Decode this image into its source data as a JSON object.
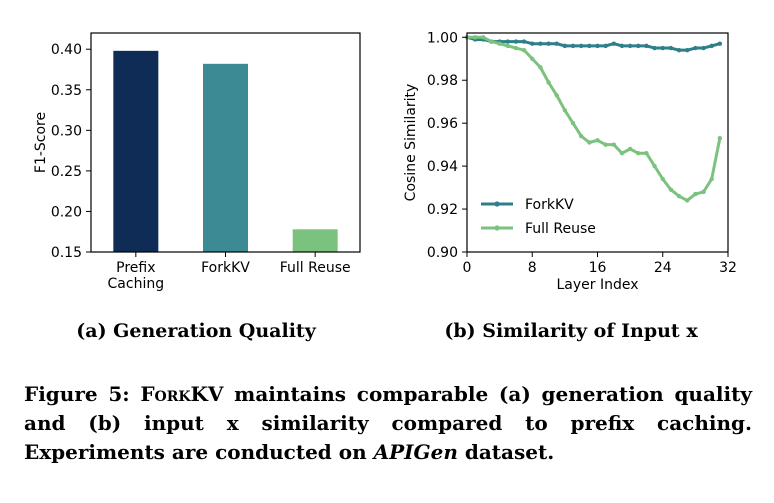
{
  "chart_data": [
    {
      "type": "bar",
      "title": "",
      "xlabel": "",
      "ylabel": "F1-Score",
      "categories": [
        [
          "Prefix",
          "Caching"
        ],
        [
          "ForkKV"
        ],
        [
          "Full Reuse"
        ]
      ],
      "values": [
        0.398,
        0.382,
        0.178
      ],
      "colors": [
        "#0e2c56",
        "#3b8a94",
        "#7cc27f"
      ],
      "ylim": [
        0.15,
        0.42
      ],
      "yticks": [
        "0.15",
        "0.20",
        "0.25",
        "0.30",
        "0.35",
        "0.40"
      ],
      "grid": false
    },
    {
      "type": "line",
      "title": "",
      "xlabel": "Layer Index",
      "ylabel": "Cosine Similarity",
      "xlim": [
        0,
        32
      ],
      "ylim": [
        0.9,
        1.002
      ],
      "xticks": [
        "0",
        "8",
        "16",
        "24",
        "32"
      ],
      "yticks": [
        "0.90",
        "0.92",
        "0.94",
        "0.96",
        "0.98",
        "1.00"
      ],
      "legend_position": "lower-left",
      "grid": false,
      "x": [
        0,
        1,
        2,
        3,
        4,
        5,
        6,
        7,
        8,
        9,
        10,
        11,
        12,
        13,
        14,
        15,
        16,
        17,
        18,
        19,
        20,
        21,
        22,
        23,
        24,
        25,
        26,
        27,
        28,
        29,
        30,
        31
      ],
      "series": [
        {
          "name": "ForkKV",
          "color": "#2e7f8a",
          "values": [
            1.0,
            0.999,
            0.999,
            0.998,
            0.998,
            0.998,
            0.998,
            0.998,
            0.997,
            0.997,
            0.997,
            0.997,
            0.996,
            0.996,
            0.996,
            0.996,
            0.996,
            0.996,
            0.997,
            0.996,
            0.996,
            0.996,
            0.996,
            0.995,
            0.995,
            0.995,
            0.994,
            0.994,
            0.995,
            0.995,
            0.996,
            0.997
          ]
        },
        {
          "name": "Full Reuse",
          "color": "#7cc27f",
          "values": [
            1.0,
            1.0,
            1.0,
            0.998,
            0.997,
            0.996,
            0.995,
            0.994,
            0.99,
            0.986,
            0.979,
            0.973,
            0.966,
            0.96,
            0.954,
            0.951,
            0.952,
            0.95,
            0.95,
            0.946,
            0.948,
            0.946,
            0.946,
            0.94,
            0.934,
            0.929,
            0.926,
            0.924,
            0.927,
            0.928,
            0.934,
            0.953
          ]
        }
      ]
    }
  ],
  "subcaptions": {
    "a": "(a) Generation Quality",
    "b": "(b) Similarity of Input x"
  },
  "caption": {
    "lead": "Figure 5: ",
    "name_smallcaps": "ForkKV",
    "mid": " maintains comparable (a) generation quality and (b) input x similarity compared to prefix caching. Experiments are conducted on ",
    "dataset_italic": "APIGen",
    "tail": " dataset."
  }
}
